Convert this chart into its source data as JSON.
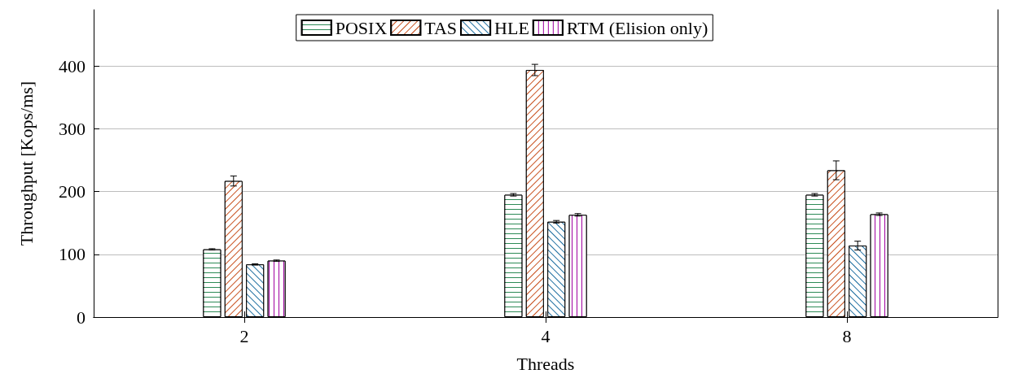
{
  "chart_data": {
    "type": "bar",
    "xlabel": "Threads",
    "ylabel": "Throughput [Kops/ms]",
    "categories": [
      "2",
      "4",
      "8"
    ],
    "series": [
      {
        "name": "POSIX",
        "color": "#2e8b57",
        "values": [
          108,
          195,
          195
        ],
        "errors": [
          1,
          2,
          2
        ]
      },
      {
        "name": "TAS",
        "color": "#c8501e",
        "values": [
          217,
          394,
          234
        ],
        "errors": [
          8,
          9,
          15
        ]
      },
      {
        "name": "HLE",
        "color": "#1e6ea0",
        "values": [
          84,
          152,
          114
        ],
        "errors": [
          1,
          2,
          7
        ]
      },
      {
        "name": "RTM (Elision only)",
        "color": "#a000a0",
        "values": [
          90,
          163,
          164
        ],
        "errors": [
          1,
          2,
          2
        ]
      }
    ],
    "ylim": [
      0,
      490
    ],
    "yticks": [
      0,
      100,
      200,
      300,
      400
    ],
    "grid": "y",
    "legend": "top"
  }
}
